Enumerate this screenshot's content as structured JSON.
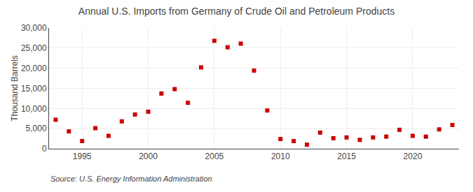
{
  "chart_data": {
    "type": "scatter",
    "title": "Annual U.S. Imports from Germany of Crude Oil and Petroleum Products",
    "ylabel": "Thousand Barrels",
    "source": "Source: U.S. Energy Information Administration",
    "x": [
      1993,
      1994,
      1995,
      1996,
      1997,
      1998,
      1999,
      2000,
      2001,
      2002,
      2003,
      2004,
      2005,
      2006,
      2007,
      2008,
      2009,
      2010,
      2011,
      2012,
      2013,
      2014,
      2015,
      2016,
      2017,
      2018,
      2019,
      2020,
      2021,
      2022,
      2023
    ],
    "values": [
      7200,
      4300,
      1900,
      5100,
      3200,
      6800,
      8500,
      9200,
      13700,
      14800,
      11400,
      20200,
      26800,
      25200,
      26100,
      19400,
      9500,
      2400,
      1900,
      1000,
      4000,
      2600,
      2800,
      2200,
      2800,
      3000,
      4700,
      3200,
      3000,
      4800,
      5900
    ],
    "color": "#cc0000",
    "marker": "square",
    "xlim": [
      1992.5,
      2023.5
    ],
    "xticks": [
      1995,
      2000,
      2005,
      2010,
      2015,
      2020
    ],
    "ylim": [
      0,
      30000
    ],
    "yticks": [
      0,
      {
        "value": 5000,
        "label": "5,000"
      },
      {
        "value": 10000,
        "label": "10,000"
      },
      {
        "value": 15000,
        "label": "15,000"
      },
      {
        "value": 20000,
        "label": "20,000"
      },
      {
        "value": 25000,
        "label": "25,000"
      },
      {
        "value": 30000,
        "label": "30,000"
      }
    ],
    "grid": true
  }
}
